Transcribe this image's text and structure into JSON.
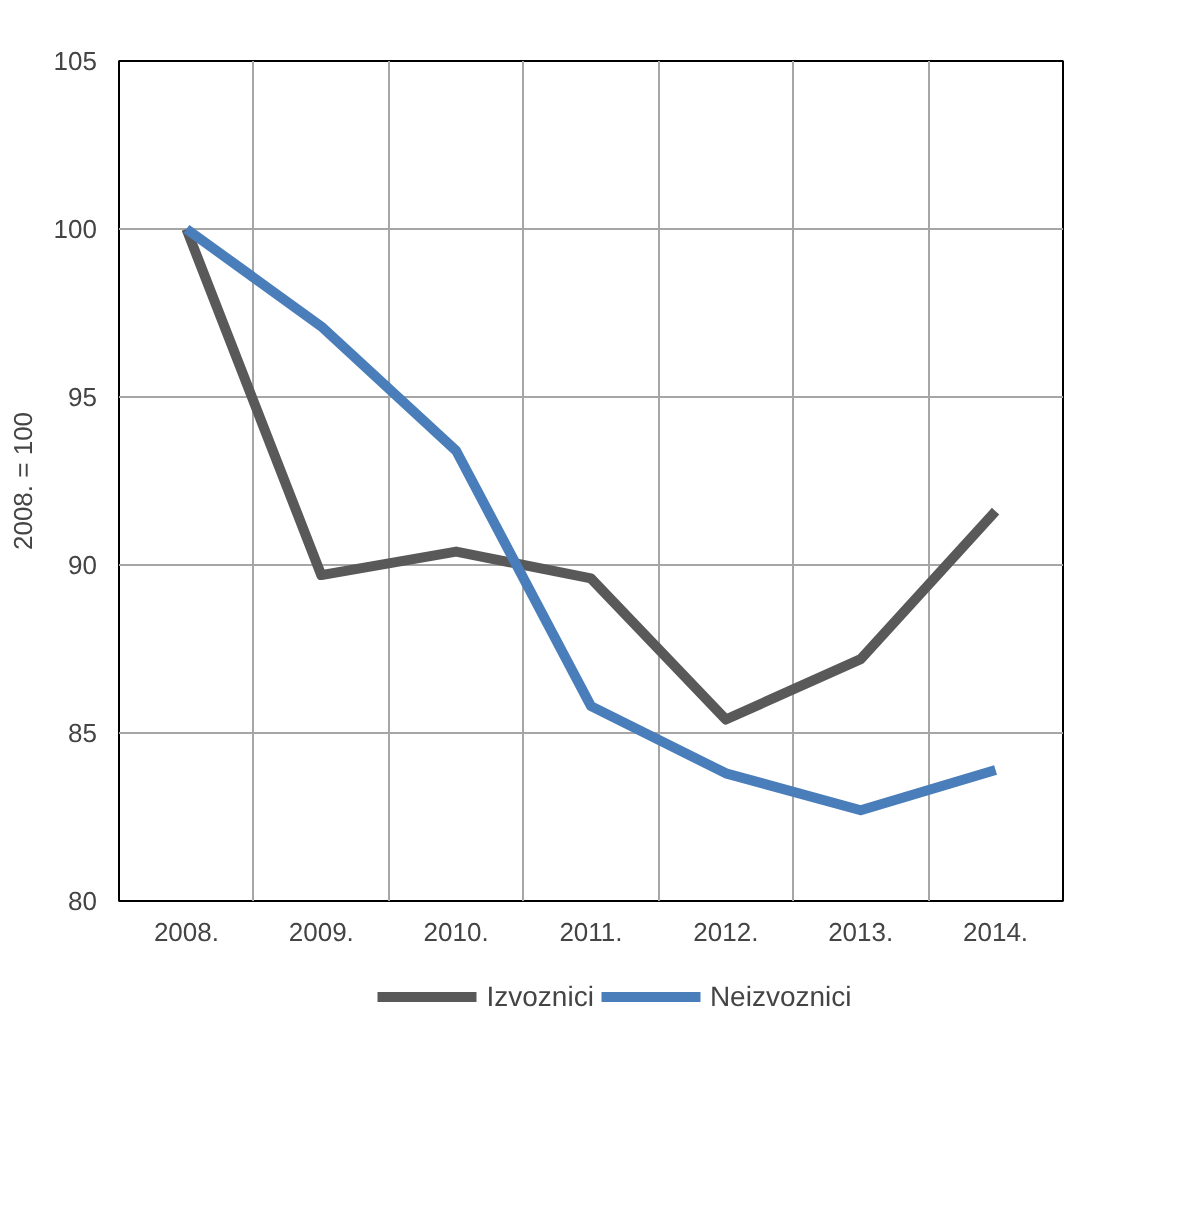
{
  "chart_data": {
    "type": "line",
    "ylabel": "2008. = 100",
    "categories": [
      "2008.",
      "2009.",
      "2010.",
      "2011.",
      "2012.",
      "2013.",
      "2014."
    ],
    "series": [
      {
        "name": "Izvoznici",
        "color": "#595959",
        "values": [
          100,
          89.7,
          90.4,
          89.6,
          85.4,
          87.2,
          91.6
        ]
      },
      {
        "name": "Neizvoznici",
        "color": "#4a7ebb",
        "values": [
          100,
          97.1,
          93.4,
          85.8,
          83.8,
          82.7,
          83.9
        ]
      }
    ],
    "ylim": [
      80,
      105
    ],
    "yticks": [
      80,
      85,
      90,
      95,
      100,
      105
    ],
    "grid": true,
    "legend": "bottom",
    "marker": "none",
    "line_style": "solid"
  }
}
